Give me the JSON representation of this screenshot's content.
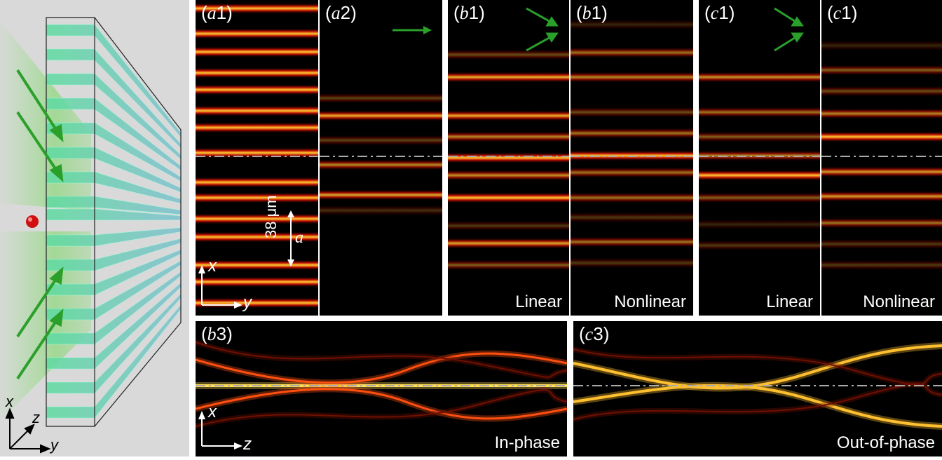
{
  "panels": {
    "a1": {
      "tag": "a",
      "num": "1"
    },
    "a2": {
      "tag": "a",
      "num": "2"
    },
    "b1_lin": {
      "tag": "b",
      "num": "1",
      "caption": "Linear"
    },
    "b1_nl": {
      "tag": "b",
      "num": "1",
      "caption": "Nonlinear"
    },
    "c1_lin": {
      "tag": "c",
      "num": "1",
      "caption": "Linear"
    },
    "c1_nl": {
      "tag": "c",
      "num": "1",
      "caption": "Nonlinear"
    },
    "b3": {
      "tag": "b",
      "num": "3",
      "caption": "In-phase"
    },
    "c3": {
      "tag": "c",
      "num": "3",
      "caption": "Out-of-phase"
    }
  },
  "scale_bar": {
    "value": "38 μm",
    "symbol": "a"
  },
  "axes_top": {
    "vertical": "x",
    "horizontal": "y"
  },
  "axes_bottom": {
    "vertical": "x",
    "horizontal": "z"
  },
  "axes_schematic": {
    "x": "x",
    "z": "z",
    "y": "y"
  },
  "colors": {
    "beam_arrow": "#2aa02a",
    "waveguide": "#6fd8a8",
    "dashed_line": "#aaaaaa",
    "particle": "#d01010"
  },
  "icons": [
    "beam-arrow-icon",
    "red-particle-icon",
    "waveguide-array-icon"
  ]
}
